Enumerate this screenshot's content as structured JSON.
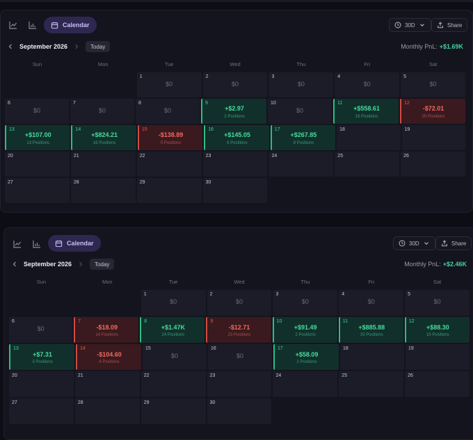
{
  "panels": [
    {
      "view_button": "Calendar",
      "range": "30D",
      "share": "Share",
      "month": "September 2026",
      "today": "Today",
      "pnl_label": "Monthly PnL:",
      "pnl_value": "+$1.69K",
      "weekdays": [
        "Sun",
        "Mon",
        "Tue",
        "Wed",
        "Thu",
        "Fri",
        "Sat"
      ],
      "weeks": [
        [
          null,
          null,
          {
            "day": "1",
            "amount": "$0"
          },
          {
            "day": "2",
            "amount": "$0"
          },
          {
            "day": "3",
            "amount": "$0"
          },
          {
            "day": "4",
            "amount": "$0"
          },
          {
            "day": "5",
            "amount": "$0"
          }
        ],
        [
          {
            "day": "6",
            "amount": "$0"
          },
          {
            "day": "7",
            "amount": "$0"
          },
          {
            "day": "8",
            "amount": "$0"
          },
          {
            "day": "9",
            "amount": "+$2.97",
            "positions": "2 Positions",
            "status": "win"
          },
          {
            "day": "10",
            "amount": "$0"
          },
          {
            "day": "11",
            "amount": "+$558.61",
            "positions": "18 Positions",
            "status": "win"
          },
          {
            "day": "12",
            "amount": "-$72.01",
            "positions": "20 Positions",
            "status": "loss"
          }
        ],
        [
          {
            "day": "13",
            "amount": "+$107.00",
            "positions": "13 Positions",
            "status": "win"
          },
          {
            "day": "14",
            "amount": "+$824.21",
            "positions": "16 Positions",
            "status": "win"
          },
          {
            "day": "15",
            "amount": "-$138.89",
            "positions": "5 Positions",
            "status": "loss"
          },
          {
            "day": "16",
            "amount": "+$145.05",
            "positions": "6 Positions",
            "status": "win"
          },
          {
            "day": "17",
            "amount": "+$267.85",
            "positions": "8 Positions",
            "status": "win"
          },
          {
            "day": "18"
          },
          {
            "day": "19"
          }
        ],
        [
          {
            "day": "20"
          },
          {
            "day": "21"
          },
          {
            "day": "22"
          },
          {
            "day": "23"
          },
          {
            "day": "24"
          },
          {
            "day": "25"
          },
          {
            "day": "26"
          }
        ],
        [
          {
            "day": "27"
          },
          {
            "day": "28"
          },
          {
            "day": "29"
          },
          {
            "day": "30"
          },
          null,
          null,
          null
        ]
      ]
    },
    {
      "view_button": "Calendar",
      "range": "30D",
      "share": "Share",
      "month": "September 2026",
      "today": "Today",
      "pnl_label": "Monthly PnL:",
      "pnl_value": "+$2.46K",
      "weekdays": [
        "Sun",
        "Mon",
        "Tue",
        "Wed",
        "Thu",
        "Fri",
        "Sat"
      ],
      "weeks": [
        [
          null,
          null,
          {
            "day": "1",
            "amount": "$0"
          },
          {
            "day": "2",
            "amount": "$0"
          },
          {
            "day": "3",
            "amount": "$0"
          },
          {
            "day": "4",
            "amount": "$0"
          },
          {
            "day": "5",
            "amount": "$0"
          }
        ],
        [
          {
            "day": "6",
            "amount": "$0"
          },
          {
            "day": "7",
            "amount": "-$18.09",
            "positions": "14 Positions",
            "status": "loss"
          },
          {
            "day": "8",
            "amount": "+$1.47K",
            "positions": "24 Positions",
            "status": "win"
          },
          {
            "day": "9",
            "amount": "-$12.71",
            "positions": "23 Positions",
            "status": "loss"
          },
          {
            "day": "10",
            "amount": "+$91.49",
            "positions": "2 Positions",
            "status": "win"
          },
          {
            "day": "11",
            "amount": "+$885.88",
            "positions": "33 Positions",
            "status": "win"
          },
          {
            "day": "12",
            "amount": "+$88.30",
            "positions": "10 Positions",
            "status": "win"
          }
        ],
        [
          {
            "day": "13",
            "amount": "+$7.31",
            "positions": "3 Positions",
            "status": "win"
          },
          {
            "day": "14",
            "amount": "-$104.60",
            "positions": "4 Positions",
            "status": "loss"
          },
          {
            "day": "15",
            "amount": "$0"
          },
          {
            "day": "16",
            "amount": "$0"
          },
          {
            "day": "17",
            "amount": "+$58.09",
            "positions": "2 Positions",
            "status": "win"
          },
          {
            "day": "18"
          },
          {
            "day": "19"
          }
        ],
        [
          {
            "day": "20"
          },
          {
            "day": "21"
          },
          {
            "day": "22"
          },
          {
            "day": "23"
          },
          {
            "day": "24"
          },
          {
            "day": "25"
          },
          {
            "day": "26"
          }
        ],
        [
          {
            "day": "27"
          },
          {
            "day": "28"
          },
          {
            "day": "29"
          },
          {
            "day": "30"
          },
          null,
          null,
          null
        ]
      ]
    }
  ]
}
